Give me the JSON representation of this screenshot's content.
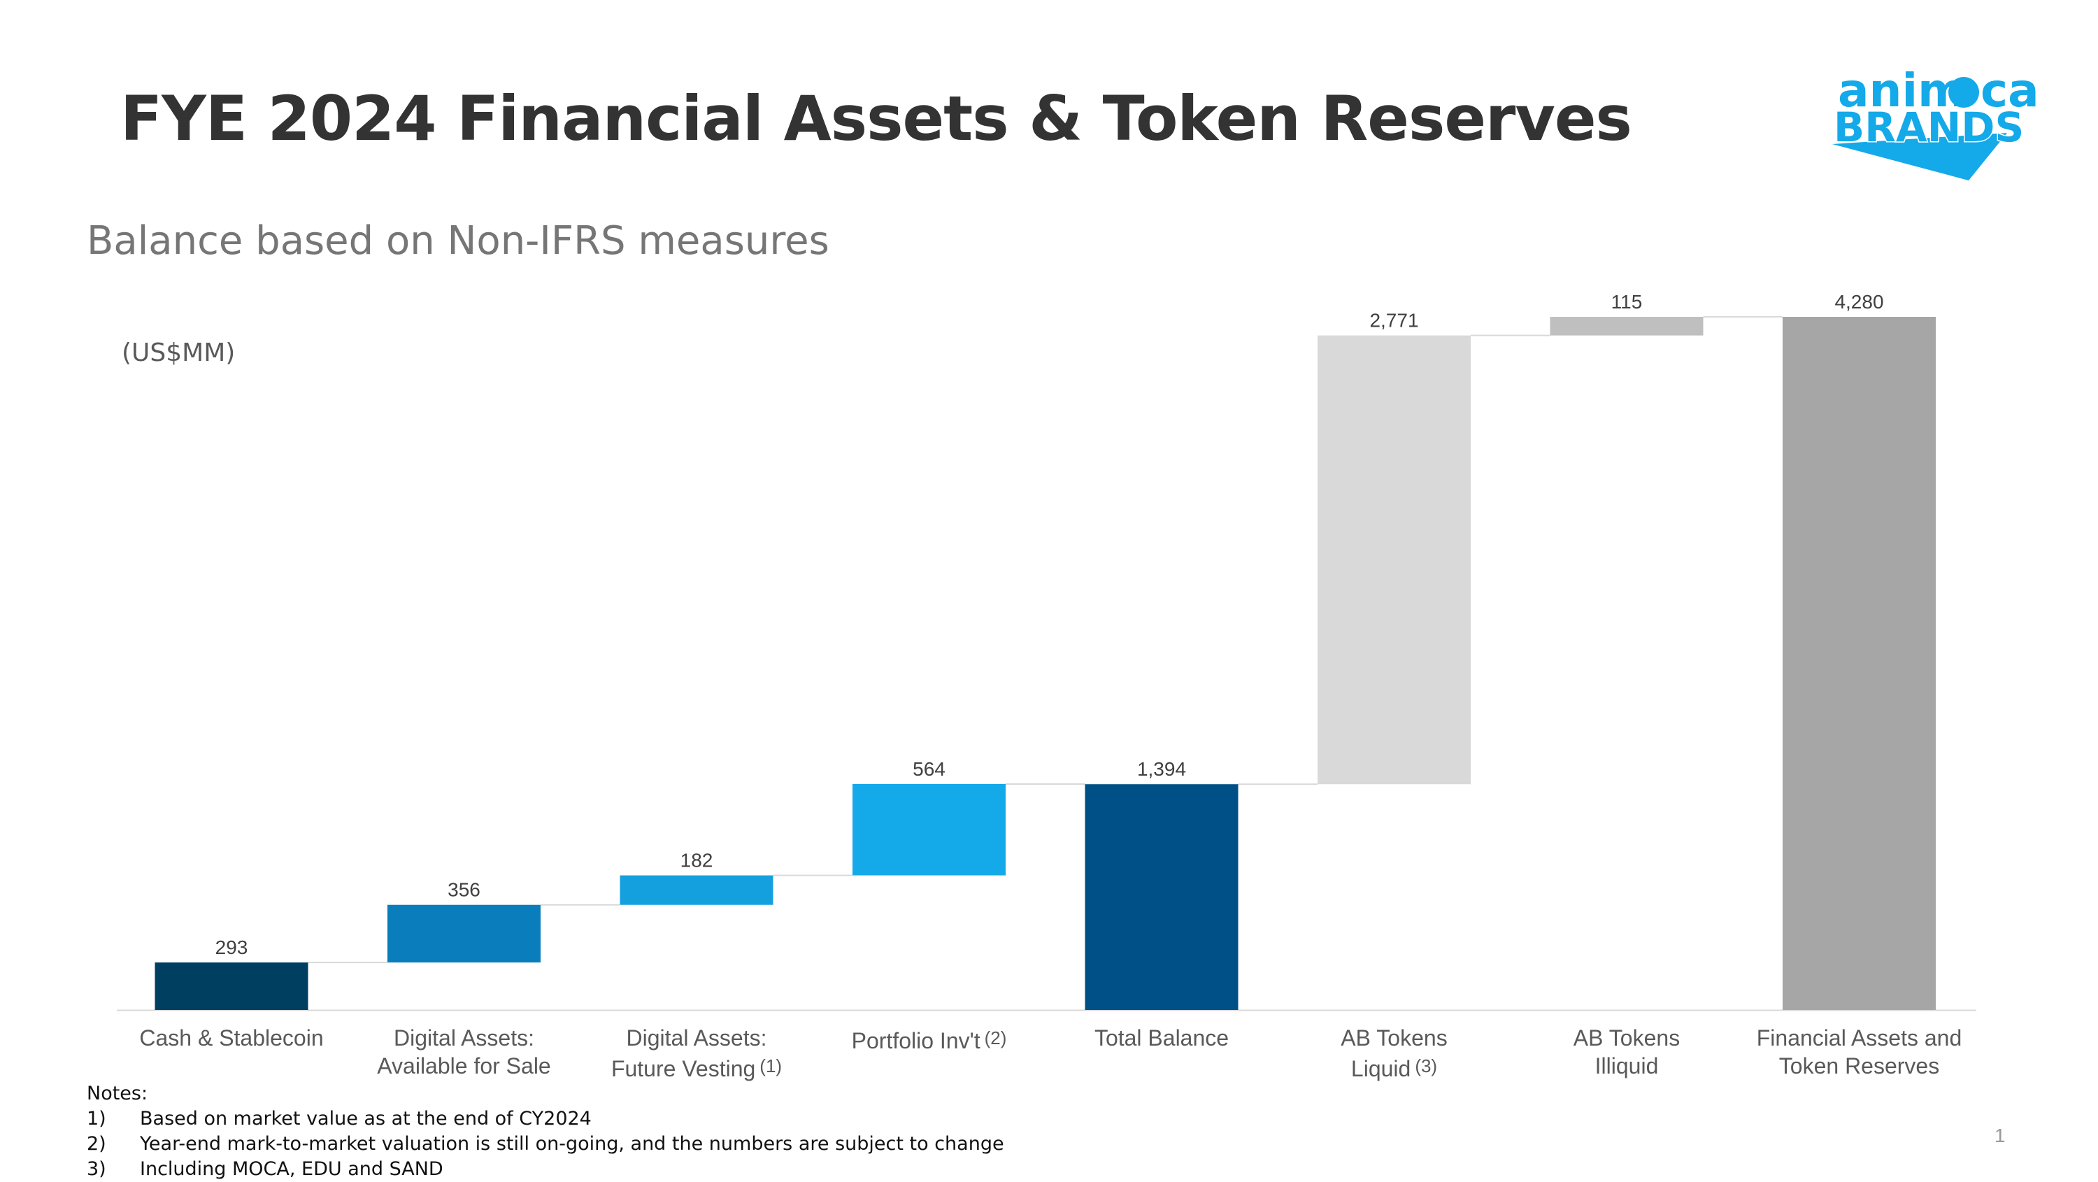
{
  "title": "FYE 2024 Financial Assets & Token Reserves",
  "subtitle": "Balance based on Non-IFRS measures",
  "units": "(US$MM)",
  "logo": {
    "text_top": "animoca",
    "text_bottom": "BRANDS",
    "color": "#14a9e8"
  },
  "chart_data": {
    "type": "waterfall",
    "ylim": [
      0,
      4280
    ],
    "grid": false,
    "categories": [
      {
        "lines": [
          "Cash & Stablecoin"
        ],
        "note": ""
      },
      {
        "lines": [
          "Digital Assets:",
          "Available for Sale"
        ],
        "note": ""
      },
      {
        "lines": [
          "Digital Assets:",
          "Future Vesting"
        ],
        "note": "(1)"
      },
      {
        "lines": [
          "Portfolio Inv't"
        ],
        "note": "(2)"
      },
      {
        "lines": [
          "Total Balance"
        ],
        "note": ""
      },
      {
        "lines": [
          "AB Tokens",
          "Liquid"
        ],
        "note": "(3)"
      },
      {
        "lines": [
          "AB Tokens",
          "Illiquid"
        ],
        "note": ""
      },
      {
        "lines": [
          "Financial Assets and",
          "Token Reserves"
        ],
        "note": ""
      }
    ],
    "values": [
      293,
      356,
      182,
      564,
      1394,
      2771,
      115,
      4280
    ],
    "labels": [
      "293",
      "356",
      "182",
      "564",
      "1,394",
      "2,771",
      "115",
      "4,280"
    ],
    "kind": [
      "step",
      "step",
      "step",
      "step",
      "total",
      "step",
      "step",
      "total"
    ],
    "colors": [
      "#003f60",
      "#0a7dbd",
      "#14a0df",
      "#14aaea",
      "#005088",
      "#d9d9d9",
      "#bfbfbf",
      "#a6a6a6"
    ]
  },
  "notes": {
    "heading": "Notes:",
    "items": [
      {
        "num": "1)",
        "text": "Based on market value as at the end of CY2024"
      },
      {
        "num": "2)",
        "text": "Year-end mark-to-market valuation is still on-going, and the numbers are subject to change"
      },
      {
        "num": "3)",
        "text": "Including MOCA, EDU and SAND"
      }
    ]
  },
  "page_number": "1"
}
